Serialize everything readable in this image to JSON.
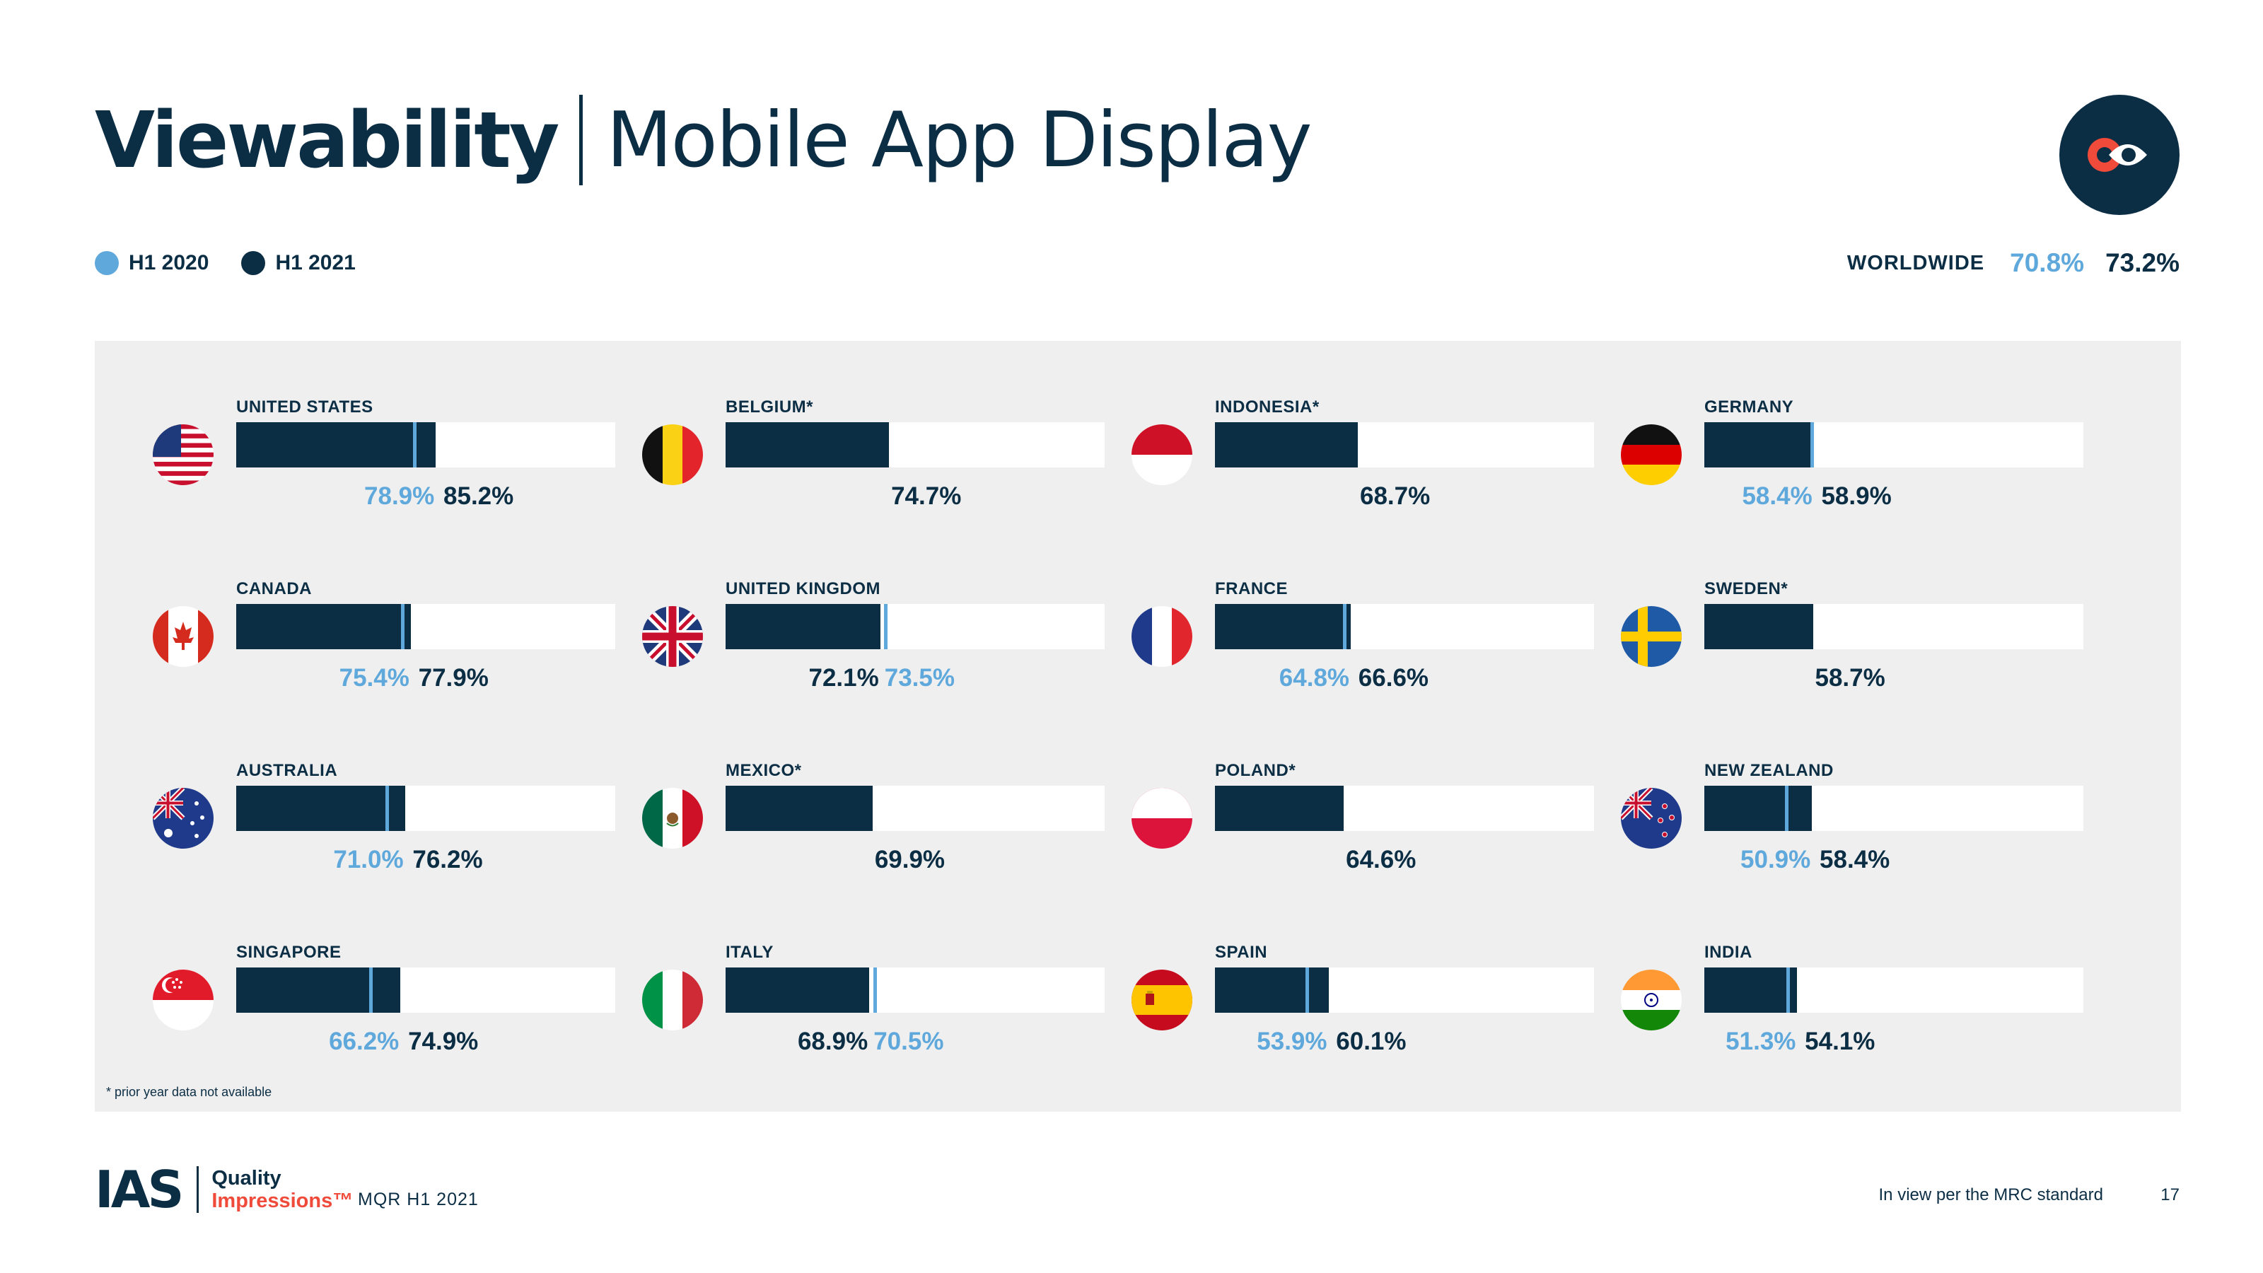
{
  "header": {
    "title": "Viewability",
    "subtitle": "Mobile App Display"
  },
  "legend": [
    {
      "label": "H1 2020",
      "color": "#5fa8dc"
    },
    {
      "label": "H1 2021",
      "color": "#0c2e45"
    }
  ],
  "worldwide": {
    "label": "WORLDWIDE",
    "h1_2020": "70.8%",
    "h1_2021": "73.2%"
  },
  "logo_icon": "ias-eye-logo-icon",
  "footnote": "* prior year data not available",
  "footer": {
    "brand": "IAS",
    "brand_line1": "Quality",
    "brand_line2": "Impressions™",
    "report": "MQR H1 2021",
    "note": "In view per the MRC standard",
    "page": "17"
  },
  "chart_data": {
    "type": "bar",
    "value_unit": "%",
    "xlim": [
      0,
      100
    ],
    "series_names": [
      "H1 2020",
      "H1 2021"
    ],
    "countries": [
      {
        "name": "UNITED STATES",
        "flag": "us-flag-icon",
        "h1_2020": 78.9,
        "h1_2021": 85.2,
        "label_2020": "78.9%",
        "label_2021": "85.2%"
      },
      {
        "name": "CANADA",
        "flag": "canada-flag-icon",
        "h1_2020": 75.4,
        "h1_2021": 77.9,
        "label_2020": "75.4%",
        "label_2021": "77.9%"
      },
      {
        "name": "AUSTRALIA",
        "flag": "australia-flag-icon",
        "h1_2020": 71.0,
        "h1_2021": 76.2,
        "label_2020": "71.0%",
        "label_2021": "76.2%"
      },
      {
        "name": "SINGAPORE",
        "flag": "singapore-flag-icon",
        "h1_2020": 66.2,
        "h1_2021": 74.9,
        "label_2020": "66.2%",
        "label_2021": "74.9%"
      },
      {
        "name": "BELGIUM*",
        "flag": "belgium-flag-icon",
        "h1_2020": null,
        "h1_2021": 74.7,
        "label_2020": "",
        "label_2021": "74.7%"
      },
      {
        "name": "UNITED KINGDOM",
        "flag": "uk-flag-icon",
        "h1_2020": 73.5,
        "h1_2021": 72.1,
        "label_2020": "73.5%",
        "label_2021": "72.1%"
      },
      {
        "name": "MEXICO*",
        "flag": "mexico-flag-icon",
        "h1_2020": null,
        "h1_2021": 69.9,
        "label_2020": "",
        "label_2021": "69.9%"
      },
      {
        "name": "ITALY",
        "flag": "italy-flag-icon",
        "h1_2020": 70.5,
        "h1_2021": 68.9,
        "label_2020": "70.5%",
        "label_2021": "68.9%"
      },
      {
        "name": "INDONESIA*",
        "flag": "indonesia-flag-icon",
        "h1_2020": null,
        "h1_2021": 68.7,
        "label_2020": "",
        "label_2021": "68.7%"
      },
      {
        "name": "FRANCE",
        "flag": "france-flag-icon",
        "h1_2020": 64.8,
        "h1_2021": 66.6,
        "label_2020": "64.8%",
        "label_2021": "66.6%"
      },
      {
        "name": "POLAND*",
        "flag": "poland-flag-icon",
        "h1_2020": null,
        "h1_2021": 64.6,
        "label_2020": "",
        "label_2021": "64.6%"
      },
      {
        "name": "SPAIN",
        "flag": "spain-flag-icon",
        "h1_2020": 53.9,
        "h1_2021": 60.1,
        "label_2020": "53.9%",
        "label_2021": "60.1%"
      },
      {
        "name": "GERMANY",
        "flag": "germany-flag-icon",
        "h1_2020": 58.4,
        "h1_2021": 58.9,
        "label_2020": "58.4%",
        "label_2021": "58.9%"
      },
      {
        "name": "SWEDEN*",
        "flag": "sweden-flag-icon",
        "h1_2020": null,
        "h1_2021": 58.7,
        "label_2020": "",
        "label_2021": "58.7%"
      },
      {
        "name": "NEW ZEALAND",
        "flag": "new-zealand-flag-icon",
        "h1_2020": 50.9,
        "h1_2021": 58.4,
        "label_2020": "50.9%",
        "label_2021": "58.4%"
      },
      {
        "name": "INDIA",
        "flag": "india-flag-icon",
        "h1_2020": 51.3,
        "h1_2021": 54.1,
        "label_2020": "51.3%",
        "label_2021": "54.1%"
      }
    ]
  }
}
